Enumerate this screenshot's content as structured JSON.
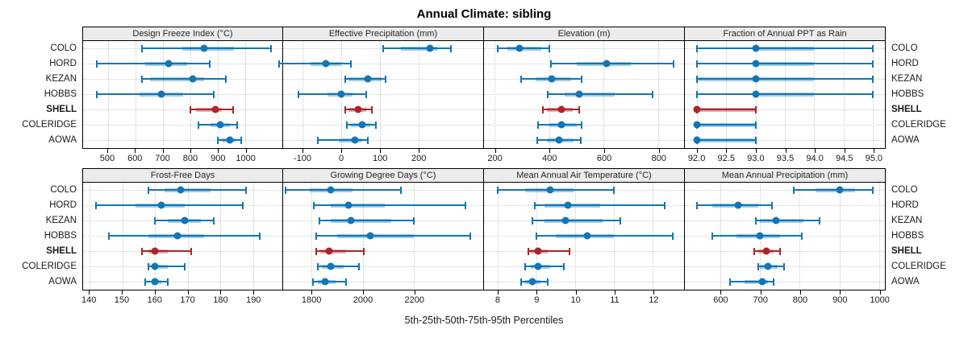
{
  "title": "Annual Climate: sibling",
  "footer": "5th-25th-50th-75th-95th Percentiles",
  "categories": [
    "COLO",
    "HORD",
    "KEZAN",
    "HOBBS",
    "SHELL",
    "COLERIDGE",
    "AOWA"
  ],
  "highlight_category": "SHELL",
  "percentile_levels": [
    "5th",
    "25th",
    "50th",
    "75th",
    "95th"
  ],
  "colors": {
    "series_default": "#1076b6",
    "series_highlight": "#ad2428",
    "header_bg": "#ececec",
    "grid": "#c9c9c9",
    "border": "#000000"
  },
  "chart_data": {
    "type": "interval",
    "subtype": "percentile-dot-plot",
    "legend_position": "none",
    "grid": true,
    "layout": {
      "rows": 2,
      "cols": 4
    },
    "value_order": [
      "p5",
      "p25",
      "p50",
      "p75",
      "p95"
    ],
    "panels": [
      {
        "title": "Design Freeze Index (°C)",
        "xmin": 410,
        "xmax": 1135,
        "ticks": [
          500,
          600,
          700,
          800,
          900,
          1000
        ],
        "tick_labels": [
          "500",
          "600",
          "700",
          "800",
          "900",
          "1000"
        ],
        "rows": [
          {
            "label": "COLO",
            "p": [
              625,
              770,
              850,
              960,
              1095
            ]
          },
          {
            "label": "HORD",
            "p": [
              460,
              635,
              720,
              790,
              870
            ]
          },
          {
            "label": "KEZAN",
            "p": [
              625,
              655,
              810,
              850,
              930
            ]
          },
          {
            "label": "HOBBS",
            "p": [
              460,
              615,
              695,
              775,
              885
            ]
          },
          {
            "label": "SHELL",
            "p": [
              800,
              820,
              890,
              915,
              955
            ]
          },
          {
            "label": "COLERIDGE",
            "p": [
              830,
              875,
              910,
              945,
              970
            ]
          },
          {
            "label": "AOWA",
            "p": [
              900,
              915,
              945,
              965,
              985
            ]
          }
        ]
      },
      {
        "title": "Effective Precipitation (mm)",
        "xmin": -150,
        "xmax": 368,
        "ticks": [
          -100,
          0,
          100,
          200
        ],
        "tick_labels": [
          "-100",
          "0",
          "100",
          "200"
        ],
        "rows": [
          {
            "label": "COLO",
            "p": [
              110,
              155,
              230,
              250,
              285
            ]
          },
          {
            "label": "HORD",
            "p": [
              -160,
              -80,
              -40,
              0,
              25
            ]
          },
          {
            "label": "KEZAN",
            "p": [
              10,
              20,
              70,
              105,
              115
            ]
          },
          {
            "label": "HOBBS",
            "p": [
              -110,
              -35,
              0,
              30,
              65
            ]
          },
          {
            "label": "SHELL",
            "p": [
              10,
              20,
              45,
              65,
              80
            ]
          },
          {
            "label": "COLERIDGE",
            "p": [
              15,
              25,
              55,
              75,
              90
            ]
          },
          {
            "label": "AOWA",
            "p": [
              -60,
              -5,
              35,
              55,
              70
            ]
          }
        ]
      },
      {
        "title": "Elevation (m)",
        "xmin": 160,
        "xmax": 895,
        "ticks": [
          200,
          400,
          600,
          800
        ],
        "tick_labels": [
          "200",
          "400",
          "600",
          "800"
        ],
        "rows": [
          {
            "label": "COLO",
            "p": [
              210,
              245,
              290,
              370,
              400
            ]
          },
          {
            "label": "HORD",
            "p": [
              405,
              500,
              610,
              700,
              855
            ]
          },
          {
            "label": "KEZAN",
            "p": [
              295,
              350,
              410,
              480,
              520
            ]
          },
          {
            "label": "HOBBS",
            "p": [
              395,
              455,
              510,
              640,
              780
            ]
          },
          {
            "label": "SHELL",
            "p": [
              375,
              390,
              445,
              485,
              510
            ]
          },
          {
            "label": "COLERIDGE",
            "p": [
              360,
              400,
              445,
              500,
              520
            ]
          },
          {
            "label": "AOWA",
            "p": [
              355,
              390,
              435,
              490,
              515
            ]
          }
        ]
      },
      {
        "title": "Fraction of Annual PPT as Rain",
        "xmin": 91.8,
        "xmax": 95.2,
        "ticks": [
          92.0,
          92.5,
          93.0,
          93.5,
          94.0,
          94.5,
          95.0
        ],
        "tick_labels": [
          "92.0",
          "92.5",
          "93.0",
          "93.5",
          "94.0",
          "94.5",
          "95.0"
        ],
        "rows": [
          {
            "label": "COLO",
            "p": [
              92,
              93,
              93,
              94,
              95
            ]
          },
          {
            "label": "HORD",
            "p": [
              92,
              93,
              93,
              94,
              95
            ]
          },
          {
            "label": "KEZAN",
            "p": [
              92,
              92,
              93,
              94,
              95
            ]
          },
          {
            "label": "HOBBS",
            "p": [
              92,
              93,
              93,
              94,
              95
            ]
          },
          {
            "label": "SHELL",
            "p": [
              92,
              92,
              92,
              93,
              93
            ]
          },
          {
            "label": "COLERIDGE",
            "p": [
              92,
              92,
              92,
              93,
              93
            ]
          },
          {
            "label": "AOWA",
            "p": [
              92,
              92,
              92,
              93,
              93
            ]
          }
        ]
      },
      {
        "title": "Frost-Free Days",
        "xmin": 138,
        "xmax": 199,
        "ticks": [
          140,
          150,
          160,
          170,
          180,
          190
        ],
        "tick_labels": [
          "140",
          "150",
          "160",
          "170",
          "180",
          "190"
        ],
        "rows": [
          {
            "label": "COLO",
            "p": [
              158,
              163,
              168,
              177,
              188
            ]
          },
          {
            "label": "HORD",
            "p": [
              142,
              154,
              162,
              169,
              187
            ]
          },
          {
            "label": "KEZAN",
            "p": [
              160,
              164,
              169,
              174,
              178
            ]
          },
          {
            "label": "HOBBS",
            "p": [
              146,
              158,
              167,
              175,
              192
            ]
          },
          {
            "label": "SHELL",
            "p": [
              156,
              158,
              160,
              164,
              171
            ]
          },
          {
            "label": "COLERIDGE",
            "p": [
              158,
              159,
              160,
              164,
              169
            ]
          },
          {
            "label": "AOWA",
            "p": [
              157,
              159,
              160,
              162,
              164
            ]
          }
        ]
      },
      {
        "title": "Growing Degree Days (°C)",
        "xmin": 1690,
        "xmax": 2470,
        "ticks": [
          1800,
          2000,
          2200
        ],
        "tick_labels": [
          "1800",
          "2000",
          "2200"
        ],
        "rows": [
          {
            "label": "COLO",
            "p": [
              1700,
              1795,
              1875,
              1960,
              2150
            ]
          },
          {
            "label": "HORD",
            "p": [
              1810,
              1875,
              1945,
              2085,
              2400
            ]
          },
          {
            "label": "KEZAN",
            "p": [
              1830,
              1875,
              1955,
              2110,
              2200
            ]
          },
          {
            "label": "HOBBS",
            "p": [
              1820,
              1900,
              2030,
              2200,
              2420
            ]
          },
          {
            "label": "SHELL",
            "p": [
              1820,
              1835,
              1870,
              1935,
              2005
            ]
          },
          {
            "label": "COLERIDGE",
            "p": [
              1825,
              1840,
              1875,
              1925,
              1985
            ]
          },
          {
            "label": "AOWA",
            "p": [
              1805,
              1825,
              1855,
              1895,
              1935
            ]
          }
        ]
      },
      {
        "title": "Mean Annual Air Temperature (°C)",
        "xmin": 7.65,
        "xmax": 12.8,
        "ticks": [
          8,
          9,
          10,
          11,
          12
        ],
        "tick_labels": [
          "8",
          "9",
          "10",
          "11",
          "12"
        ],
        "rows": [
          {
            "label": "COLO",
            "p": [
              8.0,
              8.7,
              9.35,
              9.95,
              11.0
            ]
          },
          {
            "label": "HORD",
            "p": [
              8.95,
              9.2,
              9.8,
              10.65,
              12.3
            ]
          },
          {
            "label": "KEZAN",
            "p": [
              8.9,
              9.2,
              9.75,
              10.7,
              11.15
            ]
          },
          {
            "label": "HOBBS",
            "p": [
              9.0,
              9.5,
              10.3,
              11.0,
              12.5
            ]
          },
          {
            "label": "SHELL",
            "p": [
              8.8,
              8.85,
              9.05,
              9.3,
              9.85
            ]
          },
          {
            "label": "COLERIDGE",
            "p": [
              8.7,
              8.85,
              9.05,
              9.35,
              9.7
            ]
          },
          {
            "label": "AOWA",
            "p": [
              8.6,
              8.7,
              8.9,
              9.1,
              9.3
            ]
          }
        ]
      },
      {
        "title": "Mean Annual Precipitation (mm)",
        "xmin": 510,
        "xmax": 1015,
        "ticks": [
          600,
          700,
          800,
          900,
          1000
        ],
        "tick_labels": [
          "600",
          "700",
          "800",
          "900",
          "1000"
        ],
        "rows": [
          {
            "label": "COLO",
            "p": [
              785,
              840,
              900,
              940,
              985
            ]
          },
          {
            "label": "HORD",
            "p": [
              540,
              580,
              645,
              695,
              730
            ]
          },
          {
            "label": "KEZAN",
            "p": [
              690,
              700,
              740,
              810,
              850
            ]
          },
          {
            "label": "HOBBS",
            "p": [
              580,
              640,
              700,
              750,
              805
            ]
          },
          {
            "label": "SHELL",
            "p": [
              685,
              695,
              715,
              735,
              750
            ]
          },
          {
            "label": "COLERIDGE",
            "p": [
              695,
              700,
              720,
              745,
              760
            ]
          },
          {
            "label": "AOWA",
            "p": [
              625,
              660,
              705,
              720,
              735
            ]
          }
        ]
      }
    ]
  }
}
